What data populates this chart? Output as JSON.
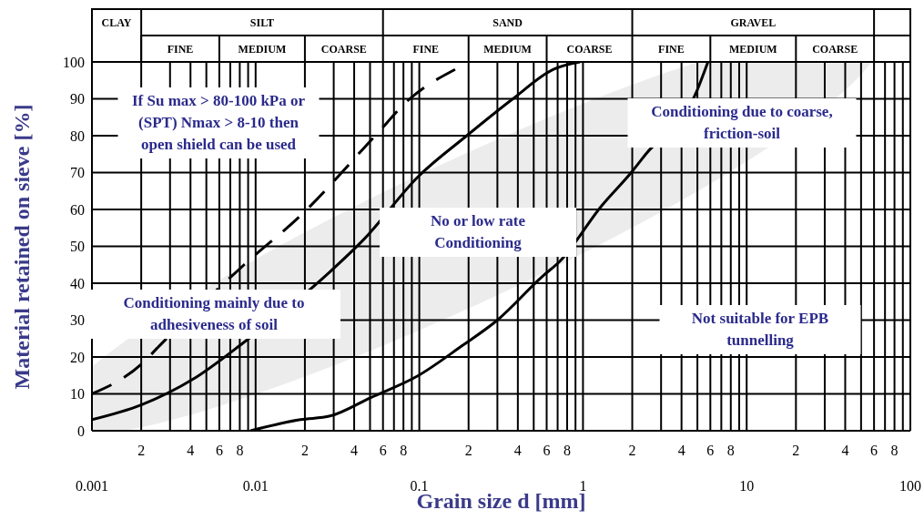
{
  "chart_data": {
    "type": "line",
    "xlabel": "Grain size d [mm]",
    "ylabel": "Material retained on sieve [%]",
    "log": "x",
    "grid": true,
    "marker": "none",
    "xlim": [
      0.001,
      100
    ],
    "xticks": [
      {
        "value": 0.001,
        "label": "0.001"
      },
      {
        "value": 0.002,
        "label": null
      },
      {
        "value": 0.003,
        "label": null
      },
      {
        "value": 0.004,
        "label": null
      },
      {
        "value": 0.005,
        "label": null
      },
      {
        "value": 0.006,
        "label": null
      },
      {
        "value": 0.007,
        "label": null
      },
      {
        "value": 0.008,
        "label": null
      },
      {
        "value": 0.009,
        "label": null
      },
      {
        "value": 0.01,
        "label": "0.01"
      },
      {
        "value": 0.02,
        "label": null
      },
      {
        "value": 0.03,
        "label": null
      },
      {
        "value": 0.04,
        "label": null
      },
      {
        "value": 0.05,
        "label": null
      },
      {
        "value": 0.06,
        "label": null
      },
      {
        "value": 0.07,
        "label": null
      },
      {
        "value": 0.08,
        "label": null
      },
      {
        "value": 0.09,
        "label": null
      },
      {
        "value": 0.1,
        "label": "0.1"
      },
      {
        "value": 0.2,
        "label": null
      },
      {
        "value": 0.3,
        "label": null
      },
      {
        "value": 0.4,
        "label": null
      },
      {
        "value": 0.5,
        "label": null
      },
      {
        "value": 0.6,
        "label": null
      },
      {
        "value": 0.7,
        "label": null
      },
      {
        "value": 0.8,
        "label": null
      },
      {
        "value": 0.9,
        "label": null
      },
      {
        "value": 1,
        "label": "1"
      },
      {
        "value": 2,
        "label": null
      },
      {
        "value": 3,
        "label": null
      },
      {
        "value": 4,
        "label": null
      },
      {
        "value": 5,
        "label": null
      },
      {
        "value": 6,
        "label": null
      },
      {
        "value": 7,
        "label": null
      },
      {
        "value": 8,
        "label": null
      },
      {
        "value": 9,
        "label": null
      },
      {
        "value": 10,
        "label": "10"
      },
      {
        "value": 20,
        "label": null
      },
      {
        "value": 30,
        "label": null
      },
      {
        "value": 40,
        "label": null
      },
      {
        "value": 50,
        "label": null
      },
      {
        "value": 60,
        "label": null
      },
      {
        "value": 70,
        "label": null
      },
      {
        "value": 80,
        "label": null
      },
      {
        "value": 90,
        "label": null
      },
      {
        "value": 100,
        "label": "100"
      }
    ],
    "ylim": [
      0,
      100
    ],
    "yticks": [
      0,
      10,
      20,
      30,
      40,
      50,
      60,
      70,
      80,
      90,
      100
    ],
    "series": [
      {
        "color": "#000000",
        "line_style": "dashed",
        "x": [
          0.001,
          0.002,
          0.00258,
          0.0085,
          0.0195,
          0.0538,
          0.0875,
          0.166
        ],
        "values": [
          10,
          18,
          23,
          45,
          59,
          80,
          90,
          98
        ]
      },
      {
        "color": "#000000",
        "line_style": "solid",
        "x": [
          0.001,
          0.002,
          0.00415,
          0.0085,
          0.0283,
          0.0461,
          0.099,
          0.195,
          0.373,
          0.66,
          0.96
        ],
        "values": [
          3,
          7,
          14,
          24,
          43,
          52,
          69,
          80,
          90,
          98,
          100
        ]
      },
      {
        "color": "#000000",
        "line_style": "solid",
        "x": [
          0.0093,
          0.0188,
          0.0285,
          0.0505,
          0.099,
          0.182,
          0.3,
          0.57,
          0.724,
          1.3,
          1.97,
          2.42,
          4.95,
          5.8
        ],
        "values": [
          0,
          3,
          4,
          9,
          15,
          23,
          30,
          42,
          46,
          61,
          70,
          75,
          92,
          100
        ]
      }
    ],
    "annotations": [
      "CLAY",
      "SILT",
      "SAND",
      "GRAVEL",
      "FINE",
      "MEDIUM",
      "COARSE",
      "FINE",
      "MEDIUM",
      "COARSE",
      "FINE",
      "MEDIUM",
      "COARSE",
      "If Su max > 80-100 kPa or (SPT) Nmax > 8-10 then open shield can be used",
      "Conditioning mainly due to adhesiveness of soil",
      "No or low rate Conditioning",
      "Conditioning due to coarse, friction-soil",
      "Not suitable for EPB tunnelling",
      "2",
      "4",
      "6",
      "8",
      "2",
      "4",
      "6",
      "8",
      "2",
      "4",
      "6",
      "8",
      "2",
      "4",
      "6",
      "8",
      "2",
      "4",
      "6",
      "8"
    ]
  }
}
